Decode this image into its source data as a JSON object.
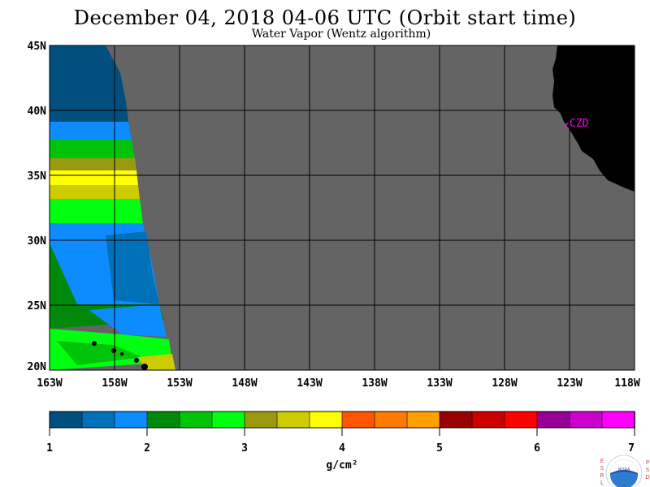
{
  "title": "December 04, 2018  04-06 UTC  (Orbit start time)",
  "subtitle": "Water Vapor (Wentz algorithm)",
  "map": {
    "lat_labels": [
      "45N",
      "40N",
      "35N",
      "30N",
      "25N",
      "20N"
    ],
    "lon_labels": [
      "163W",
      "158W",
      "153W",
      "148W",
      "143W",
      "138W",
      "133W",
      "128W",
      "123W",
      "118W"
    ],
    "lat_range": [
      20,
      45
    ],
    "lon_range": [
      -163,
      -118
    ],
    "no_data_color": "#646464",
    "land_color": "#000000",
    "station_label": "CZD",
    "station_color": "#ff00ff"
  },
  "colorbar": {
    "tick_labels": [
      "1",
      "2",
      "3",
      "4",
      "5",
      "6",
      "7"
    ],
    "unit": "g/cm²",
    "colors": [
      "#004f7e",
      "#0070b8",
      "#0c8cff",
      "#00880a",
      "#00c40a",
      "#00ff10",
      "#9a9a10",
      "#cccc00",
      "#ffff00",
      "#ff5500",
      "#ff7a00",
      "#ff9f00",
      "#960000",
      "#cc0000",
      "#ff0000",
      "#960096",
      "#cc00cc",
      "#ff00ff"
    ]
  },
  "logo": {
    "left_letters": "ESRL",
    "right_letters": "PSD",
    "center_text": "NOAA"
  }
}
